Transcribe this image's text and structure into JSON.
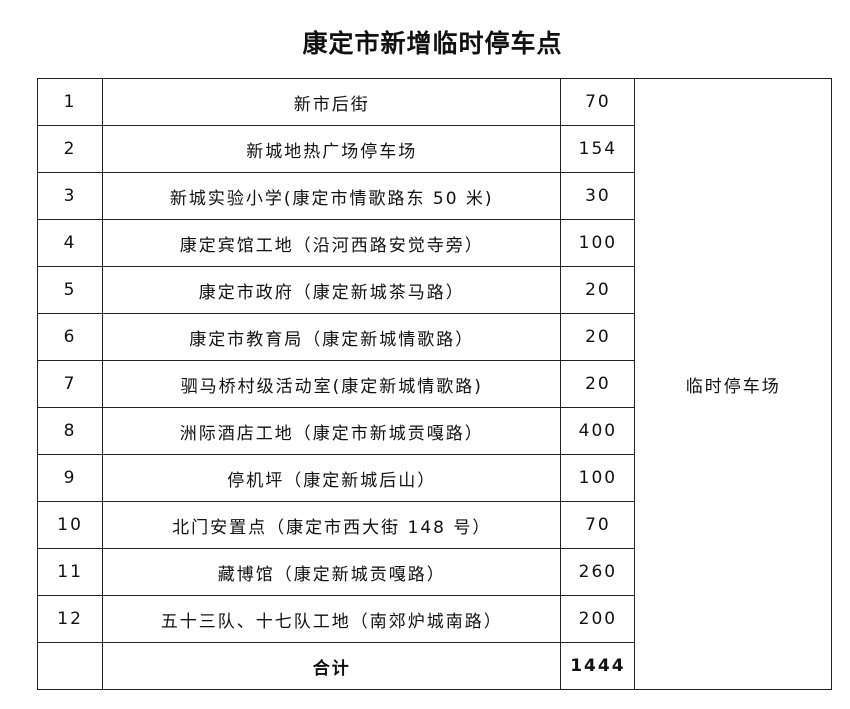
{
  "title": "康定市新增临时停车点",
  "rows": [
    {
      "no": "1",
      "name": "新市后街",
      "count": "70"
    },
    {
      "no": "2",
      "name": "新城地热广场停车场",
      "count": "154"
    },
    {
      "no": "3",
      "name": "新城实验小学(康定市情歌路东 50 米)",
      "count": "30"
    },
    {
      "no": "4",
      "name": "康定宾馆工地（沿河西路安觉寺旁）",
      "count": "100"
    },
    {
      "no": "5",
      "name": "康定市政府（康定新城茶马路）",
      "count": "20"
    },
    {
      "no": "6",
      "name": "康定市教育局（康定新城情歌路）",
      "count": "20"
    },
    {
      "no": "7",
      "name": "驷马桥村级活动室(康定新城情歌路)",
      "count": "20"
    },
    {
      "no": "8",
      "name": "洲际酒店工地（康定市新城贡嘎路）",
      "count": "400"
    },
    {
      "no": "9",
      "name": "停机坪（康定新城后山）",
      "count": "100"
    },
    {
      "no": "10",
      "name": "北门安置点（康定市西大街 148 号）",
      "count": "70"
    },
    {
      "no": "11",
      "name": "藏博馆（康定新城贡嘎路）",
      "count": "260"
    },
    {
      "no": "12",
      "name": "五十三队、十七队工地（南郊炉城南路）",
      "count": "200"
    }
  ],
  "type_label": "临时停车场",
  "total": {
    "label": "合计",
    "count": "1444"
  }
}
